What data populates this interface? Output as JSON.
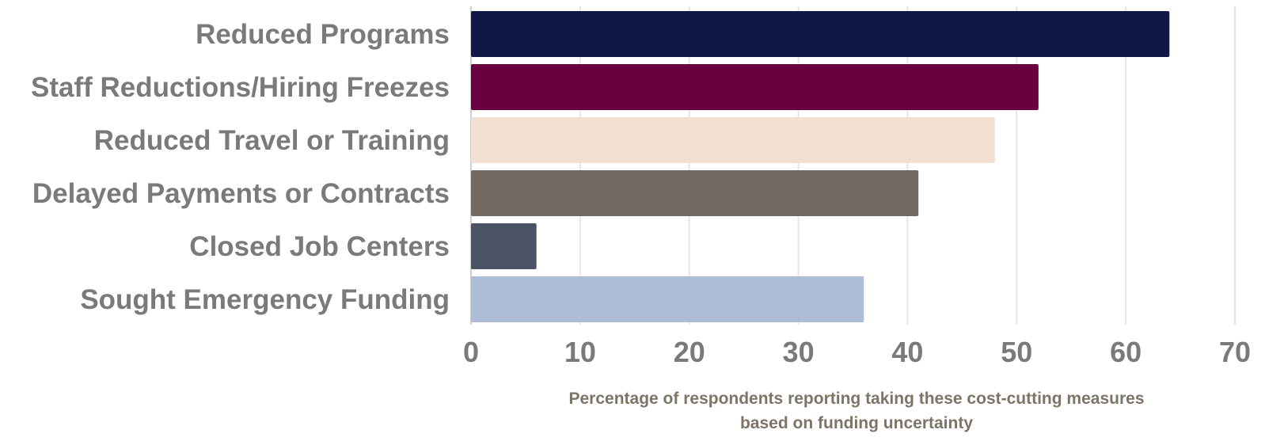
{
  "chart_data": {
    "type": "bar",
    "orientation": "horizontal",
    "title": "",
    "xlabel": "",
    "ylabel": "",
    "caption_lines": [
      "Percentage of respondents reporting taking these cost-cutting measures",
      "based on funding uncertainty"
    ],
    "categories": [
      "Reduced Programs",
      "Staff Reductions/Hiring Freezes",
      "Reduced Travel or Training",
      "Delayed Payments or Contracts",
      "Closed Job Centers",
      "Sought Emergency Funding"
    ],
    "values": [
      64,
      52,
      48,
      41,
      6,
      36
    ],
    "colors": [
      "#0e1a45",
      "#6a0040",
      "#f1e0d2",
      "#736960",
      "#4a5363",
      "#adbdd8"
    ],
    "xlim": [
      0,
      70
    ],
    "xticks": [
      0,
      10,
      20,
      30,
      40,
      50,
      60,
      70
    ],
    "grid": true,
    "legend": "none"
  }
}
